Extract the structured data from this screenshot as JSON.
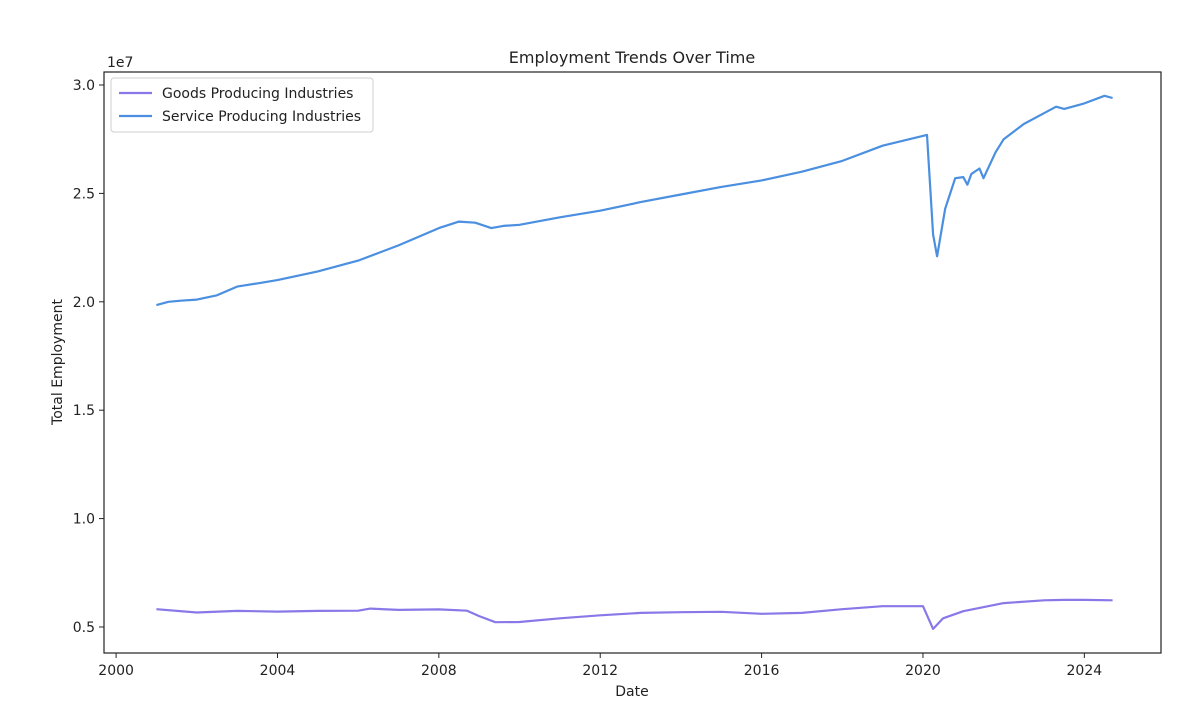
{
  "chart_data": {
    "type": "line",
    "title": "Employment Trends Over Time",
    "xlabel": "Date",
    "ylabel": "Total Employment",
    "y_offset_label": "1e7",
    "xlim": [
      1999.7,
      2025.9
    ],
    "ylim": [
      3800000,
      30600000
    ],
    "x_ticks": [
      2000,
      2004,
      2008,
      2012,
      2016,
      2020,
      2024
    ],
    "x_tick_labels": [
      "2000",
      "2004",
      "2008",
      "2012",
      "2016",
      "2020",
      "2024"
    ],
    "y_ticks": [
      5000000,
      10000000,
      15000000,
      20000000,
      25000000,
      30000000
    ],
    "y_tick_labels": [
      "0.5",
      "1.0",
      "1.5",
      "2.0",
      "2.5",
      "3.0"
    ],
    "grid": false,
    "legend_position": "top-left",
    "series": [
      {
        "name": "Goods Producing Industries",
        "color": "#8878e8",
        "x": [
          2001.0,
          2002.0,
          2003.0,
          2004.0,
          2005.0,
          2006.0,
          2006.3,
          2007.0,
          2008.0,
          2008.7,
          2009.0,
          2009.4,
          2010.0,
          2011.0,
          2012.0,
          2013.0,
          2014.0,
          2015.0,
          2016.0,
          2017.0,
          2018.0,
          2019.0,
          2020.0,
          2020.25,
          2020.5,
          2021.0,
          2022.0,
          2023.0,
          2023.5,
          2024.0,
          2024.7
        ],
        "values": [
          5820000,
          5670000,
          5740000,
          5710000,
          5740000,
          5750000,
          5850000,
          5790000,
          5810000,
          5750000,
          5500000,
          5220000,
          5230000,
          5400000,
          5540000,
          5650000,
          5680000,
          5700000,
          5610000,
          5650000,
          5820000,
          5960000,
          5960000,
          4910000,
          5400000,
          5730000,
          6100000,
          6230000,
          6250000,
          6250000,
          6230000
        ]
      },
      {
        "name": "Service Producing Industries",
        "color": "#4a8fe0",
        "x": [
          2001.0,
          2001.3,
          2001.6,
          2002.0,
          2002.5,
          2003.0,
          2003.5,
          2004.0,
          2005.0,
          2006.0,
          2007.0,
          2008.0,
          2008.5,
          2008.9,
          2009.3,
          2009.6,
          2010.0,
          2011.0,
          2012.0,
          2013.0,
          2014.0,
          2015.0,
          2016.0,
          2017.0,
          2018.0,
          2019.0,
          2020.1,
          2020.25,
          2020.35,
          2020.55,
          2020.8,
          2021.0,
          2021.1,
          2021.2,
          2021.4,
          2021.5,
          2021.8,
          2022.0,
          2022.5,
          2023.0,
          2023.3,
          2023.5,
          2024.0,
          2024.5,
          2024.7
        ],
        "values": [
          19850000,
          20000000,
          20050000,
          20100000,
          20300000,
          20700000,
          20850000,
          21000000,
          21400000,
          21900000,
          22600000,
          23400000,
          23700000,
          23650000,
          23400000,
          23500000,
          23550000,
          23900000,
          24200000,
          24600000,
          24950000,
          25300000,
          25600000,
          26000000,
          26500000,
          27200000,
          27700000,
          23100000,
          22100000,
          24300000,
          25700000,
          25750000,
          25400000,
          25900000,
          26150000,
          25700000,
          26900000,
          27500000,
          28200000,
          28700000,
          29000000,
          28900000,
          29150000,
          29500000,
          29400000
        ]
      }
    ]
  }
}
